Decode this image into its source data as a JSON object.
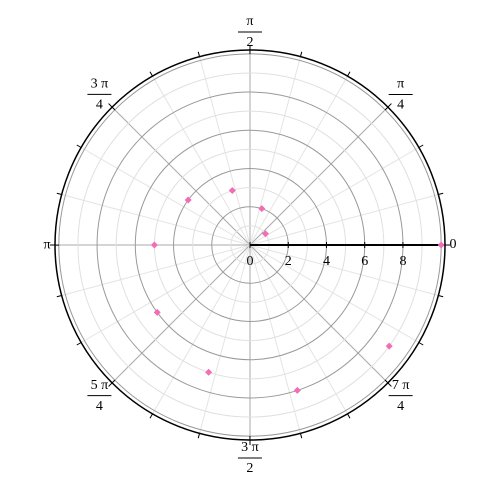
{
  "chart_data": {
    "type": "polar",
    "theta": [
      0.628,
      1.257,
      1.885,
      2.513,
      3.142,
      3.77,
      4.398,
      5.027,
      5.655,
      6.283
    ],
    "r": [
      1,
      2,
      3,
      4,
      5,
      6,
      7,
      8,
      9,
      10
    ],
    "color": "#f26db5",
    "rlim": [
      0,
      10.2
    ],
    "rticks": [
      0,
      2,
      4,
      6,
      8
    ],
    "r_grid_step": 1,
    "theta_grid_step_deg": 15,
    "thetaticks": [
      0,
      {
        "value": 0.785,
        "label": [
          "π",
          "4"
        ]
      },
      {
        "value": 1.571,
        "label": [
          "π",
          "2"
        ]
      },
      {
        "value": 2.356,
        "label": [
          "3 π",
          "4"
        ]
      },
      {
        "value": 3.142,
        "label": "π"
      },
      {
        "value": 3.927,
        "label": [
          "5 π",
          "4"
        ]
      },
      {
        "value": 4.712,
        "label": [
          "3 π",
          "2"
        ]
      },
      {
        "value": 5.498,
        "label": [
          "7 π",
          "4"
        ]
      }
    ],
    "grid": true
  }
}
